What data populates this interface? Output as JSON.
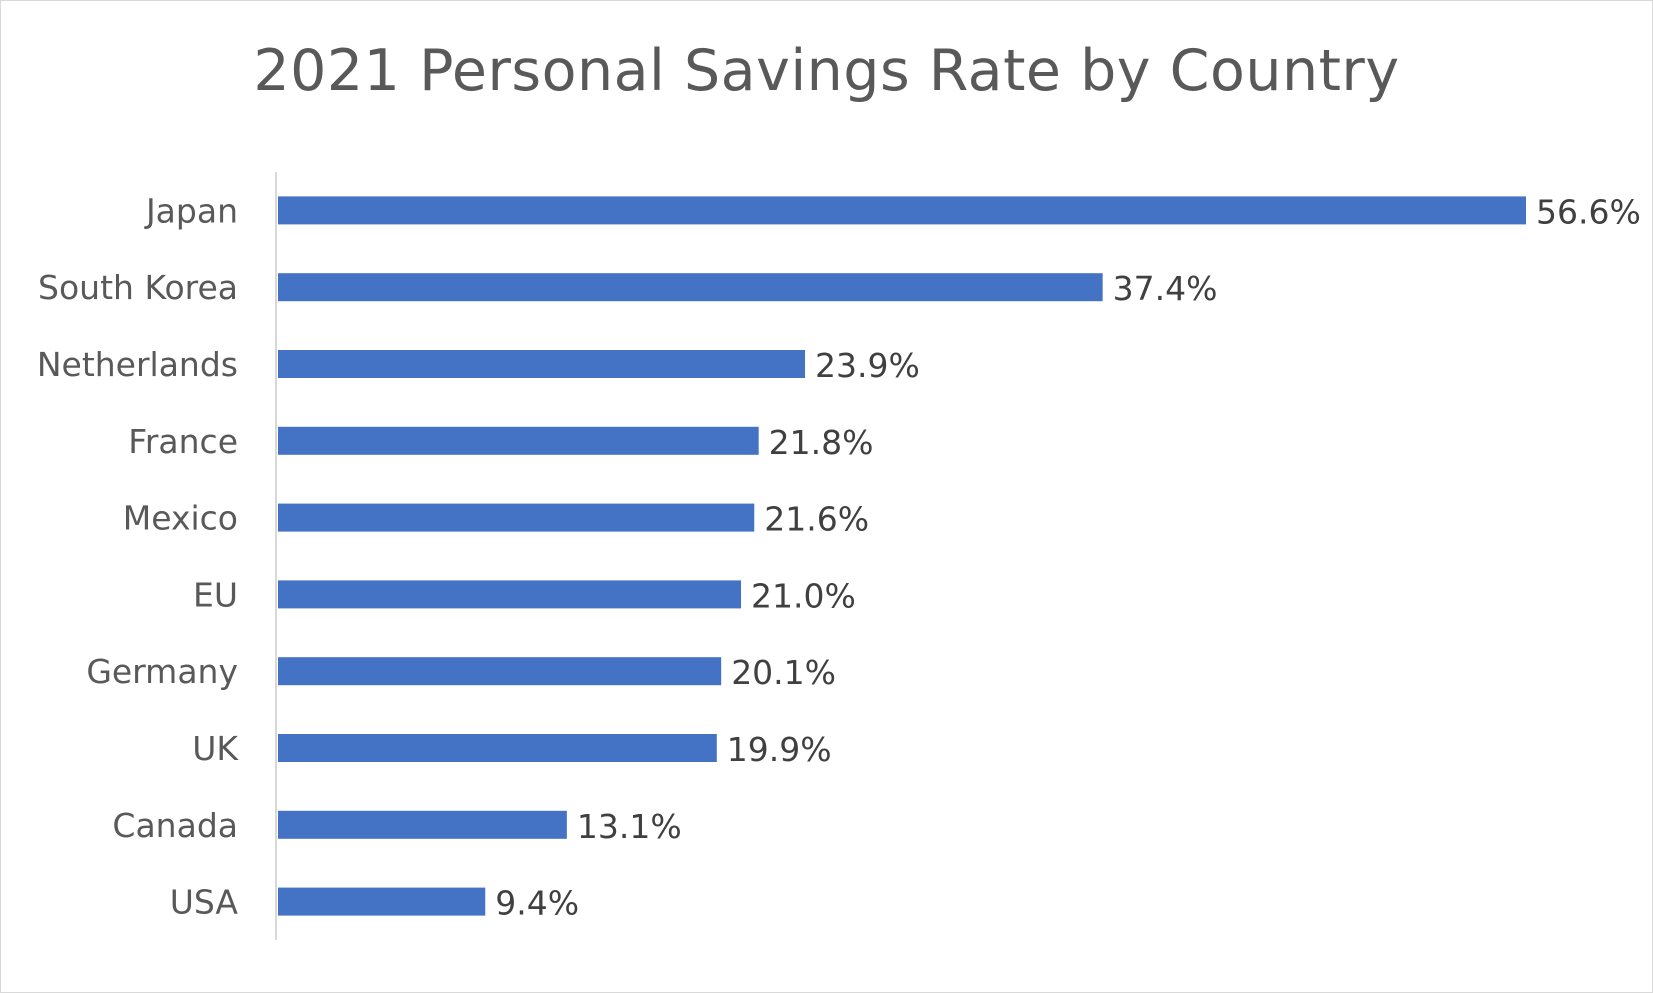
{
  "chart_data": {
    "type": "bar",
    "orientation": "horizontal",
    "title": "2021 Personal Savings Rate by Country",
    "categories": [
      "Japan",
      "South Korea",
      "Netherlands",
      "France",
      "Mexico",
      "EU",
      "Germany",
      "UK",
      "Canada",
      "USA"
    ],
    "values": [
      56.6,
      37.4,
      23.9,
      21.8,
      21.6,
      21.0,
      20.1,
      19.9,
      13.1,
      9.4
    ],
    "data_labels": [
      "56.6%",
      "37.4%",
      "23.9%",
      "21.8%",
      "21.6%",
      "21.0%",
      "20.1%",
      "19.9%",
      "13.1%",
      "9.4%"
    ],
    "xlabel": "",
    "ylabel": "",
    "xlim": [
      0,
      56.6
    ],
    "grid": false,
    "legend": "none",
    "colors": {
      "bar": "#4472c4",
      "axis": "#d9d9d9",
      "text": "#595959"
    }
  }
}
